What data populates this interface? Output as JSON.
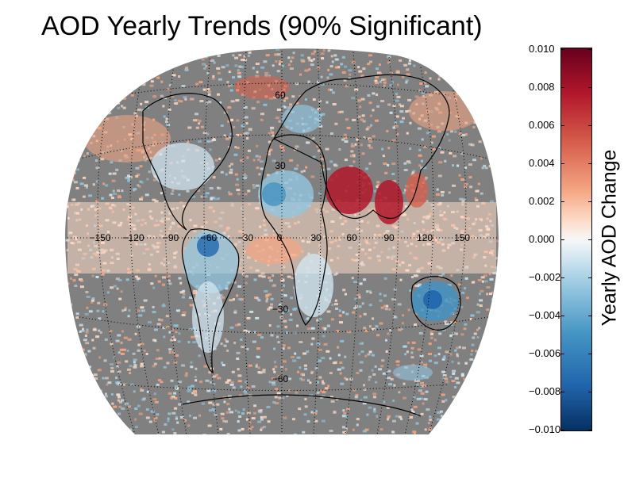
{
  "title": "AOD Yearly Trends (90% Significant)",
  "colorbar": {
    "label": "Yearly AOD Change",
    "ticks": [
      "0.010",
      "0.008",
      "0.006",
      "0.004",
      "0.002",
      "0.000",
      "−0.002",
      "−0.004",
      "−0.006",
      "−0.008",
      "−0.010"
    ],
    "min": -0.01,
    "max": 0.01,
    "colormap": [
      "#053061",
      "#2166ac",
      "#4393c3",
      "#92c5de",
      "#d1e5f0",
      "#f7f7f7",
      "#fddbc7",
      "#f4a582",
      "#d6604d",
      "#b2182b",
      "#67001f"
    ]
  },
  "map": {
    "background_color": "#808080",
    "longitude_labels": [
      "−150",
      "−120",
      "−90",
      "−60",
      "−30",
      "0",
      "30",
      "60",
      "90",
      "120",
      "150"
    ],
    "latitude_labels": [
      "60",
      "30",
      "−30",
      "−60"
    ]
  }
}
